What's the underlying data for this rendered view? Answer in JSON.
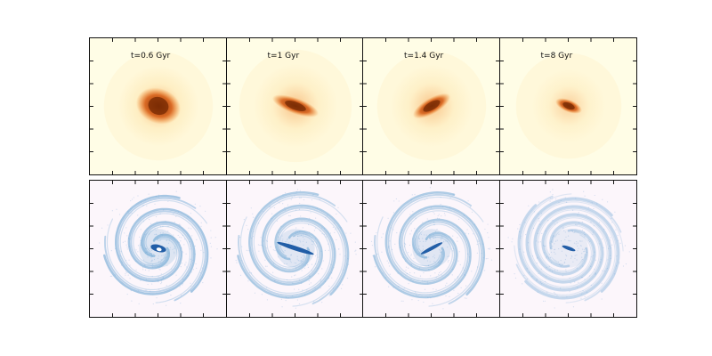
{
  "panels": [
    {
      "time_label": "t=0.6 Gyr"
    },
    {
      "time_label": "t=1 Gyr"
    },
    {
      "time_label": "t=1.4 Gyr"
    },
    {
      "time_label": "t=8 Gyr"
    }
  ],
  "colors": {
    "stellar_bg": "#fffde6",
    "stellar_core": "#7a2c04",
    "stellar_mid": "#f07f1e",
    "stellar_outer": "#fde3a8",
    "gas_bg": "#fcf6fb",
    "gas_dark": "#0d4f9e",
    "gas_mid": "#5f9fd0",
    "gas_light": "#b9cdea"
  }
}
